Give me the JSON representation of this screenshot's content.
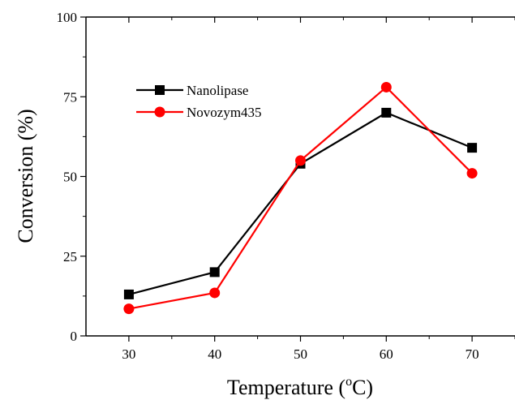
{
  "chart_data": {
    "type": "line",
    "x": [
      30,
      40,
      50,
      60,
      70
    ],
    "series": [
      {
        "name": "Nanolipase",
        "values": [
          13,
          20,
          54,
          70,
          59
        ],
        "color": "#000000",
        "marker": "square"
      },
      {
        "name": "Novozym435",
        "values": [
          8.5,
          13.5,
          55,
          78,
          51
        ],
        "color": "#ff0000",
        "marker": "circle"
      }
    ],
    "xlabel_main": "Temperature (",
    "xlabel_deg": "o",
    "xlabel_unit": "C)",
    "ylabel": "Conversion (%)",
    "xlim": [
      25,
      75
    ],
    "ylim": [
      0,
      100
    ],
    "xticks": [
      "30",
      "40",
      "50",
      "60",
      "70"
    ],
    "yticks": [
      "0",
      "25",
      "50",
      "75",
      "100"
    ],
    "grid": false,
    "legend_position": "top-left"
  }
}
